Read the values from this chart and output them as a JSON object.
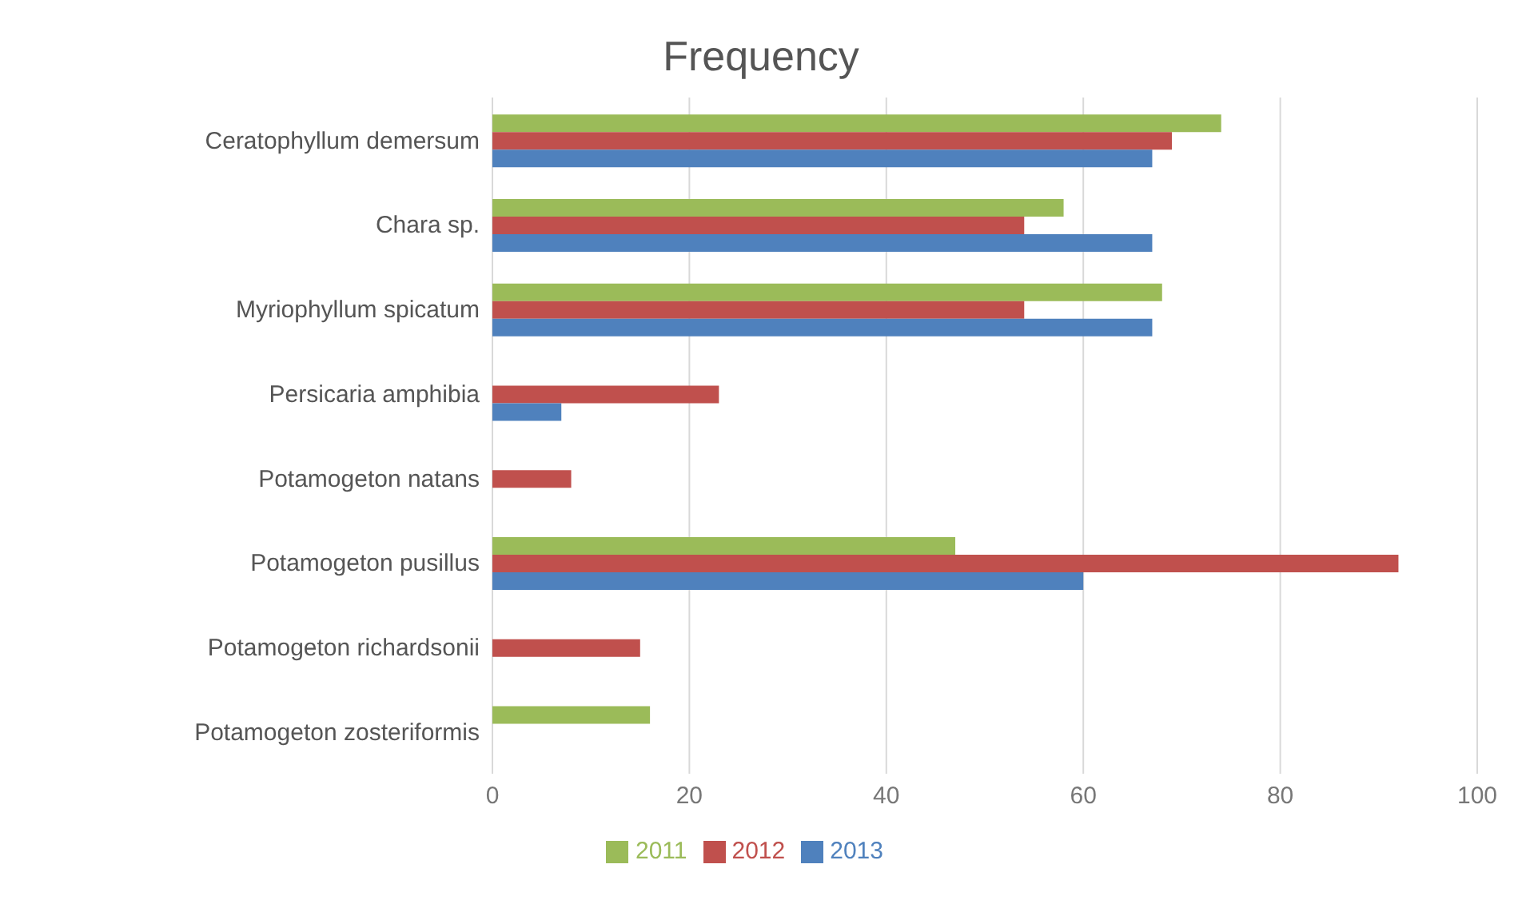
{
  "chart_data": {
    "type": "bar",
    "orientation": "horizontal",
    "title": "Frequency",
    "categories": [
      "Ceratophyllum demersum",
      "Chara sp.",
      "Myriophyllum spicatum",
      "Persicaria amphibia",
      "Potamogeton natans",
      "Potamogeton pusillus",
      "Potamogeton richardsonii",
      "Potamogeton zosteriformis"
    ],
    "series": [
      {
        "name": "2011",
        "color": "#9bbb59",
        "values": [
          74,
          58,
          68,
          null,
          null,
          47,
          null,
          16
        ]
      },
      {
        "name": "2012",
        "color": "#c0504d",
        "values": [
          69,
          54,
          54,
          23,
          8,
          92,
          15,
          null
        ]
      },
      {
        "name": "2013",
        "color": "#4f81bd",
        "values": [
          67,
          67,
          67,
          7,
          null,
          60,
          null,
          null
        ]
      }
    ],
    "xlim": [
      0,
      100
    ],
    "xticks": [
      0,
      20,
      40,
      60,
      80,
      100
    ],
    "grid": "x",
    "legend": "bottom"
  }
}
